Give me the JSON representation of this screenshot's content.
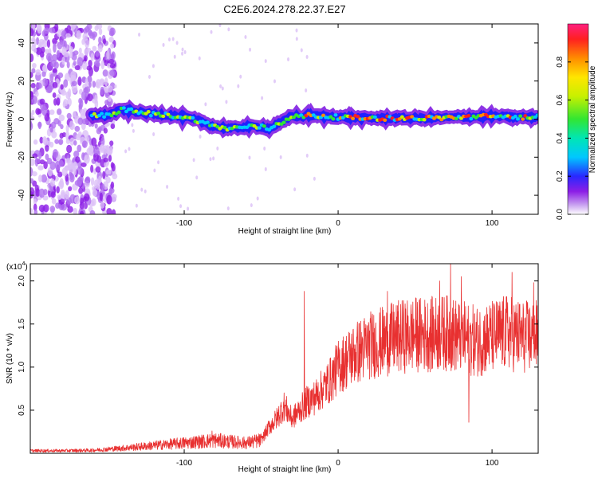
{
  "title": "C2E6.2024.278.22.37.E27",
  "chart_data": [
    {
      "type": "heatmap",
      "xlabel": "Height of straight line (km)",
      "ylabel": "Frequency (Hz)",
      "xlim": [
        -200,
        130
      ],
      "ylim": [
        -50,
        50
      ],
      "xticks": [
        -100,
        0,
        100
      ],
      "yticks": [
        -40,
        -20,
        0,
        20,
        40
      ],
      "colorbar": {
        "label": "Normalized spectral amplitude",
        "range": [
          0.0,
          1.0
        ],
        "ticks": [
          "0.0",
          "0.2",
          "0.4",
          "0.6",
          "0.8"
        ]
      },
      "ridge": {
        "x": [
          -200,
          -175,
          -150,
          -140,
          -125,
          -110,
          -100,
          -90,
          -80,
          -70,
          -60,
          -50,
          -45,
          -40,
          -35,
          -30,
          -25,
          -20,
          -10,
          0,
          20,
          40,
          60,
          80,
          100,
          115,
          130
        ],
        "y": [
          2,
          2,
          2,
          5,
          3,
          2,
          1,
          -1,
          -4,
          -5,
          -4,
          -4,
          -5,
          -3,
          -1,
          2,
          1,
          2,
          1.5,
          1,
          0.5,
          0.5,
          0.5,
          1,
          1.5,
          1,
          1
        ]
      }
    },
    {
      "type": "line",
      "xlabel": "Height of straight line (km)",
      "ylabel": "SNR (10 * v/v)",
      "scale_label": "(x10",
      "scale_exp": "4",
      "xlim": [
        -200,
        130
      ],
      "ylim": [
        0,
        22000
      ],
      "xticks": [
        -100,
        0,
        100
      ],
      "yticks": [
        5000,
        10000,
        15000,
        20000
      ],
      "ytick_labels": [
        "0.5",
        "1.0",
        "1.5",
        "2.0"
      ],
      "series": [
        {
          "color": "#e83030",
          "x": [
            -200,
            -180,
            -160,
            -140,
            -120,
            -100,
            -80,
            -60,
            -50,
            -45,
            -40,
            -35,
            -30,
            -25,
            -20,
            -15,
            -10,
            -5,
            0,
            10,
            20,
            30,
            40,
            50,
            60,
            70,
            80,
            90,
            100,
            110,
            120,
            130
          ],
          "y": [
            300,
            300,
            350,
            600,
            900,
            1200,
            1500,
            1200,
            1500,
            3000,
            4000,
            5500,
            4000,
            5000,
            6000,
            6500,
            7500,
            8500,
            10000,
            11500,
            12500,
            13000,
            13500,
            13800,
            13800,
            14000,
            13500,
            13000,
            13500,
            14000,
            13500,
            13500
          ],
          "spikes": [
            {
              "x": -22,
              "y": 18800
            },
            {
              "x": 73,
              "y": 22000
            },
            {
              "x": 80,
              "y": 20500
            },
            {
              "x": 66,
              "y": 20000
            },
            {
              "x": 113,
              "y": 21000
            },
            {
              "x": 127,
              "y": 19800
            },
            {
              "x": 85,
              "y": 3600
            },
            {
              "x": 32,
              "y": 18800
            },
            {
              "x": -82,
              "y": 2600
            }
          ]
        }
      ]
    }
  ]
}
